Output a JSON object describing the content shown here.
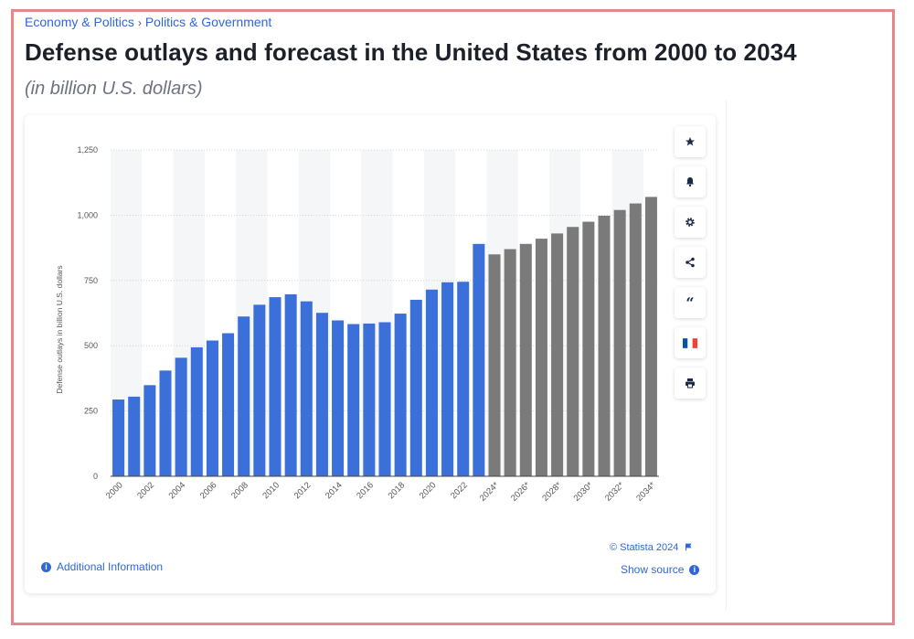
{
  "breadcrumb": {
    "category": "Economy & Politics",
    "separator": "›",
    "subcategory": "Politics & Government"
  },
  "title": "Defense outlays and forecast in the United States from 2000 to 2034",
  "subtitle": "(in billion U.S. dollars)",
  "toolbar": {
    "icons": [
      "star-icon",
      "bell-icon",
      "gear-icon",
      "share-icon",
      "quote-icon",
      "flag-fr-icon",
      "print-icon"
    ],
    "quote_glyph": "“"
  },
  "footer": {
    "copyright": "© Statista 2024",
    "additional_info": "Additional Information",
    "show_source": "Show source",
    "info_glyph": "i"
  },
  "colors": {
    "actual": "#3b6fd9",
    "forecast": "#7a7a7a",
    "link": "#2f67d6",
    "band": "#f5f6f8"
  },
  "chart_data": {
    "type": "bar",
    "title": "",
    "xlabel": "",
    "ylabel": "Defense outlays in billion U.S. dollars",
    "ylim": [
      0,
      1250
    ],
    "yticks": [
      0,
      250,
      500,
      750,
      "1,000",
      "1,250"
    ],
    "grid": true,
    "categories": [
      "2000",
      "2001",
      "2002",
      "2003",
      "2004",
      "2005",
      "2006",
      "2007",
      "2008",
      "2009",
      "2010",
      "2011",
      "2012",
      "2013",
      "2014",
      "2015",
      "2016",
      "2017",
      "2018",
      "2019",
      "2020",
      "2021",
      "2022",
      "2023",
      "2024*",
      "2025*",
      "2026*",
      "2027*",
      "2028*",
      "2029*",
      "2030*",
      "2031*",
      "2032*",
      "2033*",
      "2034*"
    ],
    "tick_labels": [
      "2000",
      "2002",
      "2004",
      "2006",
      "2008",
      "2010",
      "2012",
      "2014",
      "2016",
      "2018",
      "2020",
      "2022",
      "2024*",
      "2026*",
      "2028*",
      "2030*",
      "2032*",
      "2034*"
    ],
    "values": [
      294,
      305,
      349,
      405,
      454,
      494,
      520,
      548,
      612,
      657,
      686,
      697,
      670,
      626,
      597,
      583,
      585,
      590,
      623,
      676,
      715,
      743,
      745,
      890,
      850,
      870,
      890,
      910,
      930,
      955,
      975,
      998,
      1020,
      1045,
      1070
    ],
    "forecast_start_index": 24
  }
}
